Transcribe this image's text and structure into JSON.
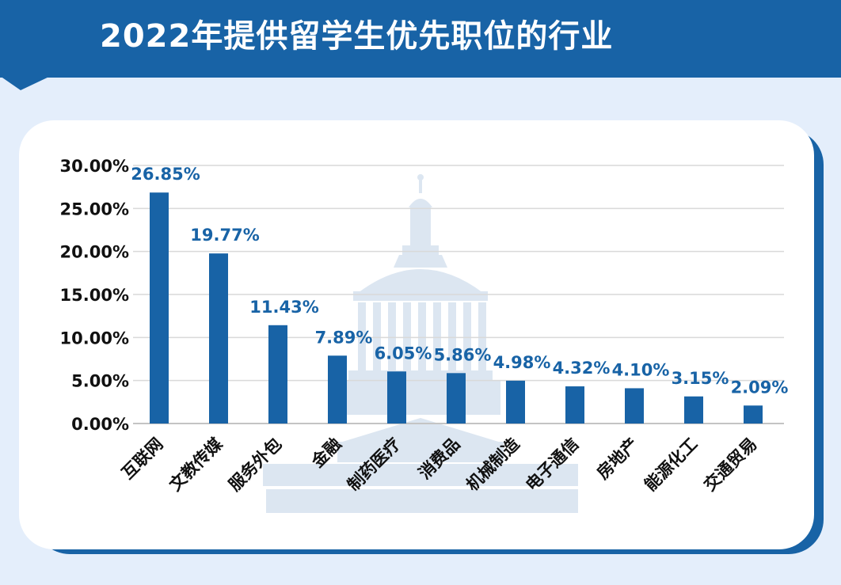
{
  "header": {
    "title": "2022年提供留学生优先职位的行业"
  },
  "colors": {
    "primary": "#1863a6",
    "background": "#e4eefb",
    "card": "#ffffff",
    "watermark": "#dce6f1"
  },
  "icons": {
    "watermark": "capitol-dome-icon"
  },
  "chart_data": {
    "type": "bar",
    "categories": [
      "互联网",
      "文教传媒",
      "服务外包",
      "金融",
      "制药医疗",
      "消费品",
      "机械制造",
      "电子通信",
      "房地产",
      "能源化工",
      "交通贸易"
    ],
    "values": [
      26.85,
      19.77,
      11.43,
      7.89,
      6.05,
      5.86,
      4.98,
      4.32,
      4.1,
      3.15,
      2.09
    ],
    "value_labels": [
      "26.85%",
      "19.77%",
      "11.43%",
      "7.89%",
      "6.05%",
      "5.86%",
      "4.98%",
      "4.32%",
      "4.10%",
      "3.15%",
      "2.09%"
    ],
    "y_ticks": [
      0,
      5,
      10,
      15,
      20,
      25,
      30
    ],
    "y_tick_labels": [
      "0.00%",
      "5.00%",
      "10.00%",
      "15.00%",
      "20.00%",
      "25.00%",
      "30.00%"
    ],
    "ylim": [
      0,
      30
    ],
    "grid": true,
    "legend": "none"
  }
}
